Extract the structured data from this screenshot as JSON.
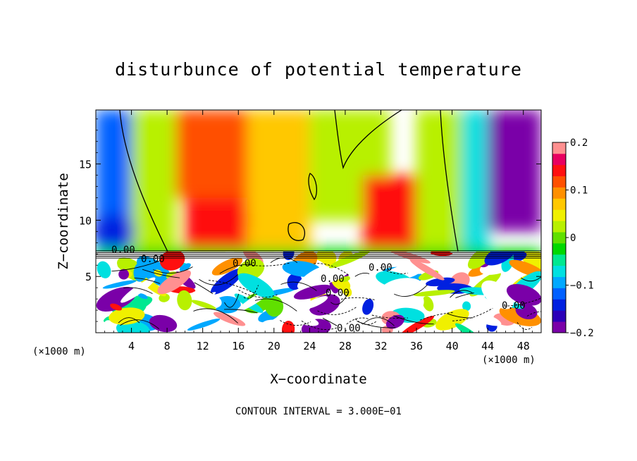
{
  "chart_data": {
    "type": "heatmap",
    "title": "disturbunce of potential temperature",
    "xlabel": "X−coordinate",
    "ylabel": "Z−coordinate",
    "x_unit": "(×1000 m)",
    "x_ticks": [
      4,
      8,
      12,
      16,
      20,
      24,
      28,
      32,
      36,
      40,
      44,
      48
    ],
    "y_ticks": [
      5,
      10,
      15
    ],
    "xlim": [
      0,
      50
    ],
    "ylim": [
      0,
      19.8
    ],
    "colorbar": {
      "ticks": [
        0.2,
        0.1,
        0,
        -0.1,
        -0.2
      ],
      "tick_labels": [
        "0.2",
        "0.1",
        "0",
        "−0.1",
        "−0.2"
      ],
      "range": [
        -0.2,
        0.2
      ],
      "colors": [
        "#7a00a8",
        "#2b00b8",
        "#0020e0",
        "#0060ff",
        "#00a8ff",
        "#00e0e0",
        "#00e890",
        "#00d800",
        "#60e000",
        "#b8f000",
        "#f0f000",
        "#ffc800",
        "#ff9000",
        "#ff5000",
        "#ff1010",
        "#e80060",
        "#ff9090"
      ]
    },
    "regions": [
      {
        "x": [
          0,
          6
        ],
        "z": [
          7.5,
          19.8
        ],
        "value": -0.12
      },
      {
        "x": [
          4,
          9
        ],
        "z": [
          7.5,
          19.8
        ],
        "value": 0.03
      },
      {
        "x": [
          9,
          17
        ],
        "z": [
          12,
          19.8
        ],
        "value": 0.12
      },
      {
        "x": [
          10,
          17
        ],
        "z": [
          7.5,
          12
        ],
        "value": 0.14
      },
      {
        "x": [
          17,
          24
        ],
        "z": [
          7.5,
          19.8
        ],
        "value": 0.08
      },
      {
        "x": [
          24,
          33
        ],
        "z": [
          10,
          19.8
        ],
        "value": 0.02
      },
      {
        "x": [
          30,
          37
        ],
        "z": [
          7.5,
          14
        ],
        "value": 0.13
      },
      {
        "x": [
          36,
          42
        ],
        "z": [
          7.5,
          19.8
        ],
        "value": 0.02
      },
      {
        "x": [
          41,
          44
        ],
        "z": [
          7.5,
          19.8
        ],
        "value": -0.08
      },
      {
        "x": [
          44,
          50
        ],
        "z": [
          9,
          19.8
        ],
        "value": -0.18
      },
      {
        "x": [
          0,
          50
        ],
        "z": [
          0,
          7.5
        ],
        "value": -0.02
      }
    ],
    "contour_labels": [
      "0.00",
      "0.00",
      "0.00",
      "0.00",
      "0.00",
      "0.00",
      "0.00",
      "0.00"
    ],
    "contour_interval": "CONTOUR INTERVAL = 3.000E−01"
  }
}
